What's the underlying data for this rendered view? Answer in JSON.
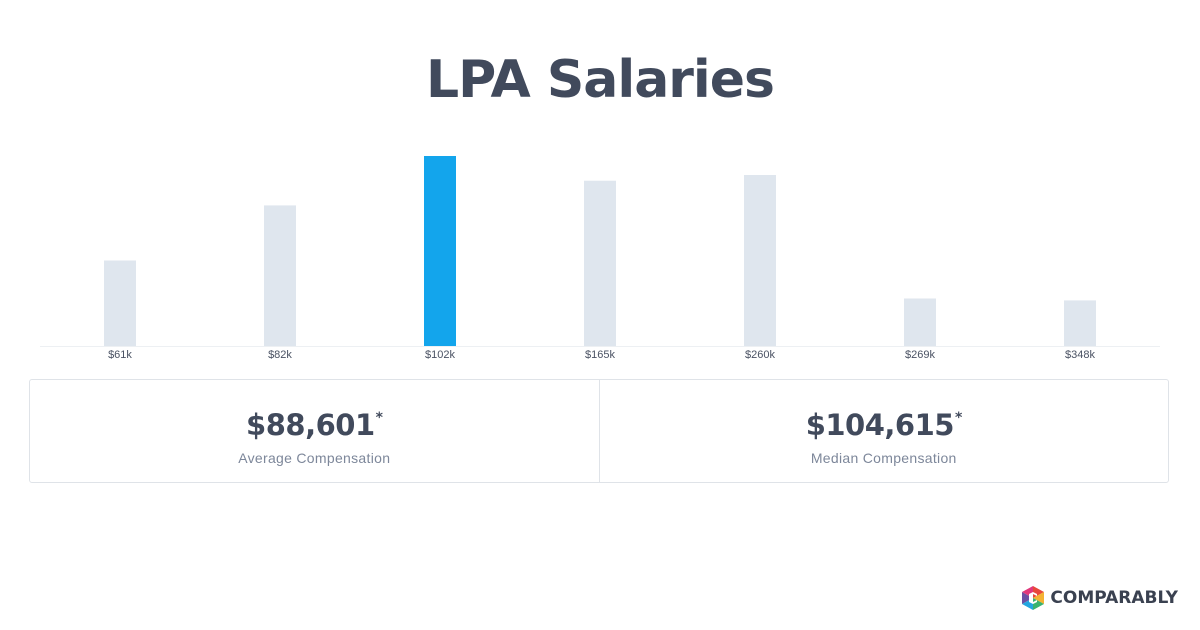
{
  "chart_data": {
    "type": "bar",
    "title": "LPA Salaries",
    "categories": [
      "$61k",
      "$82k",
      "$102k",
      "$165k",
      "$260k",
      "$269k",
      "$348k"
    ],
    "values": [
      45,
      74,
      100,
      87,
      90,
      25,
      24
    ],
    "highlight_index": 2,
    "ylim": [
      0,
      100
    ],
    "xlabel": "",
    "ylabel": "",
    "grid": false,
    "colors": {
      "bar": "#dfe6ee",
      "highlight": "#13a5ec",
      "axis": "#edf0f3",
      "tick_label": "#4a5263"
    }
  },
  "stats": {
    "average": {
      "value": "$88,601",
      "marker": "*",
      "label": "Average Compensation"
    },
    "median": {
      "value": "$104,615",
      "marker": "*",
      "label": "Median Compensation"
    }
  },
  "brand": {
    "name": "COMPARABLY",
    "icon": "comparably-logo-icon"
  }
}
